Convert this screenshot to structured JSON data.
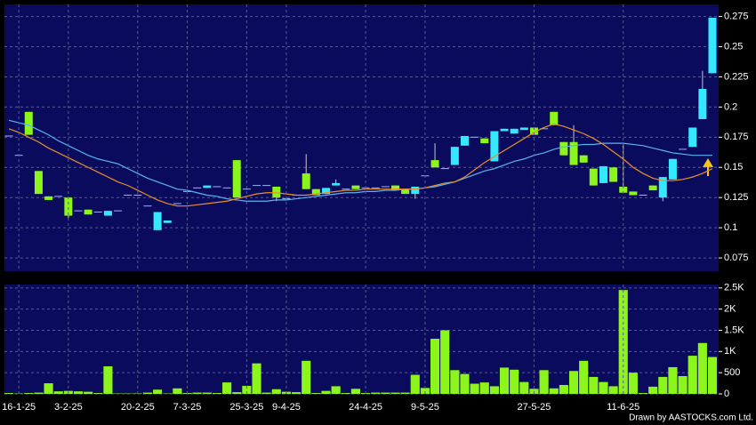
{
  "chart_data": [
    {
      "type": "candlestick",
      "open": [
        0.176,
        0.16,
        0.196,
        0.147,
        0.126,
        0.126,
        0.125,
        0.114,
        0.115,
        0.113,
        0.11,
        0.114,
        0.127,
        0.127,
        0.118,
        0.098,
        0.104,
        0.12,
        0.13,
        0.133,
        0.133,
        0.134,
        0.133,
        0.156,
        0.132,
        0.135,
        0.135,
        0.134,
        0.124,
        0.127,
        0.145,
        0.132,
        0.128,
        0.135,
        0.132,
        0.135,
        0.133,
        0.133,
        0.134,
        0.135,
        0.132,
        0.128,
        0.143,
        0.156,
        0.149,
        0.152,
        0.168,
        0.175,
        0.174,
        0.155,
        0.18,
        0.178,
        0.181,
        0.183,
        0.182,
        0.196,
        0.171,
        0.171,
        0.16,
        0.149,
        0.137,
        0.15,
        0.134,
        0.13,
        0.127,
        0.135,
        0.125,
        0.14,
        0.165,
        0.167,
        0.19,
        0.228
      ],
      "high": [
        0.176,
        0.16,
        0.196,
        0.147,
        0.126,
        0.126,
        0.125,
        0.114,
        0.115,
        0.113,
        0.114,
        0.114,
        0.127,
        0.127,
        0.118,
        0.113,
        0.106,
        0.12,
        0.13,
        0.133,
        0.135,
        0.134,
        0.133,
        0.156,
        0.132,
        0.135,
        0.135,
        0.134,
        0.124,
        0.127,
        0.161,
        0.132,
        0.133,
        0.14,
        0.132,
        0.135,
        0.133,
        0.133,
        0.134,
        0.135,
        0.132,
        0.134,
        0.143,
        0.17,
        0.149,
        0.167,
        0.176,
        0.175,
        0.174,
        0.18,
        0.182,
        0.182,
        0.183,
        0.183,
        0.182,
        0.196,
        0.171,
        0.185,
        0.16,
        0.149,
        0.151,
        0.15,
        0.17,
        0.13,
        0.127,
        0.135,
        0.142,
        0.157,
        0.165,
        0.183,
        0.23,
        0.274
      ],
      "low": [
        0.176,
        0.16,
        0.177,
        0.128,
        0.123,
        0.126,
        0.108,
        0.114,
        0.111,
        0.113,
        0.11,
        0.114,
        0.127,
        0.127,
        0.118,
        0.098,
        0.104,
        0.12,
        0.13,
        0.133,
        0.133,
        0.134,
        0.133,
        0.125,
        0.132,
        0.135,
        0.135,
        0.122,
        0.124,
        0.127,
        0.132,
        0.127,
        0.128,
        0.135,
        0.132,
        0.132,
        0.133,
        0.133,
        0.134,
        0.131,
        0.128,
        0.124,
        0.143,
        0.15,
        0.149,
        0.152,
        0.168,
        0.175,
        0.17,
        0.155,
        0.18,
        0.178,
        0.181,
        0.177,
        0.182,
        0.185,
        0.16,
        0.152,
        0.154,
        0.135,
        0.137,
        0.138,
        0.129,
        0.127,
        0.127,
        0.131,
        0.122,
        0.14,
        0.165,
        0.167,
        0.19,
        0.228
      ],
      "close": [
        0.176,
        0.16,
        0.177,
        0.128,
        0.123,
        0.126,
        0.11,
        0.114,
        0.111,
        0.113,
        0.114,
        0.114,
        0.127,
        0.127,
        0.118,
        0.113,
        0.106,
        0.12,
        0.13,
        0.133,
        0.135,
        0.134,
        0.133,
        0.125,
        0.132,
        0.135,
        0.135,
        0.125,
        0.124,
        0.127,
        0.132,
        0.127,
        0.133,
        0.137,
        0.132,
        0.132,
        0.133,
        0.133,
        0.134,
        0.131,
        0.128,
        0.134,
        0.143,
        0.15,
        0.149,
        0.167,
        0.176,
        0.175,
        0.17,
        0.18,
        0.182,
        0.182,
        0.183,
        0.177,
        0.182,
        0.185,
        0.16,
        0.152,
        0.154,
        0.135,
        0.151,
        0.138,
        0.129,
        0.127,
        0.127,
        0.131,
        0.142,
        0.157,
        0.165,
        0.183,
        0.215,
        0.274
      ],
      "up_color": "#33e8ff",
      "down_color": "#8cf51c",
      "flat_color": "#9fb4ff",
      "series": [
        {
          "color": "#5ab4f0",
          "values": [
            0.189,
            0.187,
            0.185,
            0.181,
            0.177,
            0.172,
            0.168,
            0.164,
            0.16,
            0.157,
            0.155,
            0.153,
            0.149,
            0.145,
            0.141,
            0.138,
            0.135,
            0.132,
            0.131,
            0.129,
            0.127,
            0.126,
            0.124,
            0.123,
            0.122,
            0.122,
            0.122,
            0.123,
            0.123,
            0.124,
            0.125,
            0.126,
            0.127,
            0.128,
            0.129,
            0.129,
            0.13,
            0.13,
            0.131,
            0.131,
            0.132,
            0.132,
            0.133,
            0.134,
            0.136,
            0.138,
            0.141,
            0.144,
            0.147,
            0.149,
            0.152,
            0.155,
            0.157,
            0.16,
            0.162,
            0.165,
            0.167,
            0.168,
            0.169,
            0.169,
            0.17,
            0.17,
            0.17,
            0.169,
            0.168,
            0.166,
            0.164,
            0.162,
            0.161,
            0.16,
            0.16,
            0.16
          ]
        },
        {
          "color": "#e8902a",
          "values": [
            0.182,
            0.179,
            0.175,
            0.171,
            0.166,
            0.162,
            0.158,
            0.154,
            0.15,
            0.146,
            0.142,
            0.138,
            0.135,
            0.131,
            0.127,
            0.123,
            0.12,
            0.118,
            0.118,
            0.119,
            0.12,
            0.121,
            0.122,
            0.124,
            0.126,
            0.128,
            0.129,
            0.129,
            0.128,
            0.127,
            0.127,
            0.128,
            0.129,
            0.13,
            0.131,
            0.131,
            0.132,
            0.132,
            0.132,
            0.132,
            0.132,
            0.132,
            0.133,
            0.135,
            0.137,
            0.138,
            0.142,
            0.148,
            0.154,
            0.159,
            0.164,
            0.169,
            0.174,
            0.179,
            0.183,
            0.186,
            0.184,
            0.181,
            0.178,
            0.174,
            0.169,
            0.163,
            0.157,
            0.15,
            0.145,
            0.141,
            0.139,
            0.139,
            0.14,
            0.142,
            0.145,
            0.149
          ]
        }
      ],
      "ylim": [
        0.064,
        0.285
      ],
      "yticks": [
        0.075,
        0.1,
        0.125,
        0.15,
        0.175,
        0.2,
        0.225,
        0.25,
        0.275
      ],
      "grid": true
    },
    {
      "type": "bar",
      "categories": [
        null,
        "16-1-25",
        null,
        null,
        null,
        null,
        "3-2-25",
        null,
        null,
        null,
        null,
        null,
        null,
        "20-2-25",
        null,
        null,
        null,
        null,
        "7-3-25",
        null,
        null,
        null,
        null,
        null,
        "25-3-25",
        null,
        null,
        null,
        "9-4-25",
        null,
        null,
        null,
        null,
        null,
        null,
        null,
        "24-4-25",
        null,
        null,
        null,
        null,
        null,
        "9-5-25",
        null,
        null,
        null,
        null,
        null,
        null,
        null,
        null,
        null,
        null,
        "27-5-25",
        null,
        null,
        null,
        null,
        null,
        null,
        null,
        null,
        "11-6-25",
        null,
        null,
        null,
        null,
        null,
        null,
        null,
        null,
        null
      ],
      "values": [
        20,
        10,
        20,
        30,
        250,
        60,
        70,
        60,
        50,
        20,
        650,
        10,
        10,
        10,
        30,
        100,
        10,
        130,
        20,
        30,
        30,
        20,
        270,
        40,
        190,
        720,
        30,
        110,
        50,
        40,
        780,
        20,
        70,
        180,
        20,
        120,
        20,
        30,
        30,
        30,
        30,
        450,
        140,
        1300,
        1500,
        560,
        470,
        240,
        270,
        180,
        620,
        570,
        280,
        120,
        560,
        130,
        210,
        540,
        780,
        400,
        280,
        180,
        2450,
        500,
        20,
        170,
        400,
        630,
        420,
        900,
        1200,
        870
      ],
      "color": "#8cf51c",
      "ylim": [
        0,
        2580
      ],
      "yticks": [
        0,
        500,
        {
          "value": 1000,
          "label": "1K"
        },
        {
          "value": 1500,
          "label": "1.5K"
        },
        {
          "value": 2000,
          "label": "2K"
        },
        {
          "value": 2500,
          "label": "2.5K"
        }
      ],
      "grid": true
    }
  ],
  "credit": "Drawn by AASTOCKS.com Ltd."
}
